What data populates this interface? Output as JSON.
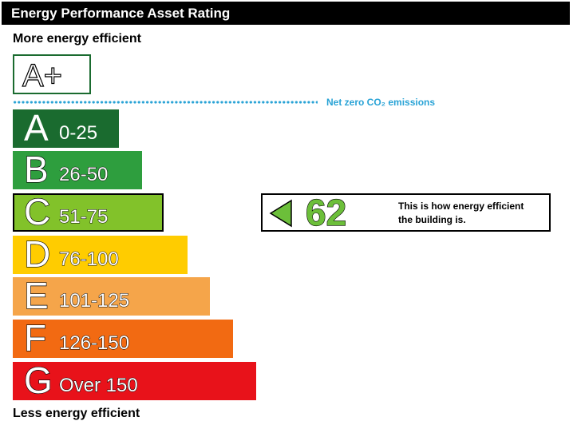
{
  "header": {
    "title": "Energy Performance Asset Rating"
  },
  "labels": {
    "more": "More energy efficient",
    "less": "Less energy efficient"
  },
  "aplus": {
    "text": "A+"
  },
  "net_zero": {
    "label": "Net zero CO₂ emissions",
    "color": "#29a3d6"
  },
  "bands": [
    {
      "letter": "A",
      "range": "0-25",
      "color": "#1a6b2f"
    },
    {
      "letter": "B",
      "range": "26-50",
      "color": "#2e9e3e"
    },
    {
      "letter": "C",
      "range": "51-75",
      "color": "#82c22a",
      "current": true
    },
    {
      "letter": "D",
      "range": "76-100",
      "color": "#ffcc00"
    },
    {
      "letter": "E",
      "range": "101-125",
      "color": "#f5a54a"
    },
    {
      "letter": "F",
      "range": "126-150",
      "color": "#f26a12"
    },
    {
      "letter": "G",
      "range": "Over 150",
      "color": "#e8121a"
    }
  ],
  "rating": {
    "score": "62",
    "description_line1": "This is how energy efficient",
    "description_line2": "the building is.",
    "color": "#6cbf3a"
  }
}
